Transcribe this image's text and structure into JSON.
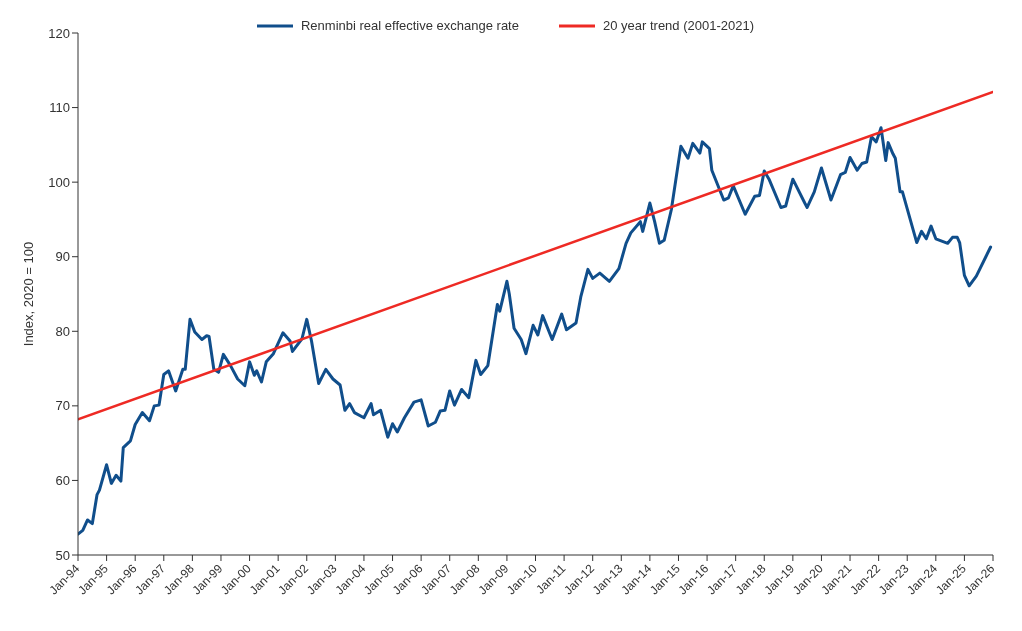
{
  "chart_data": {
    "type": "line",
    "ylabel": "Index, 2020 = 100",
    "legend": "top",
    "grid": false,
    "marker": "none",
    "line_style": "solid",
    "xlim": [
      "1994-01",
      "2026-01"
    ],
    "xticks": [
      {
        "value": "1994-01",
        "label": "Jan-94"
      },
      {
        "value": "1995-01",
        "label": "Jan-95"
      },
      {
        "value": "1996-01",
        "label": "Jan-96"
      },
      {
        "value": "1997-01",
        "label": "Jan-97"
      },
      {
        "value": "1998-01",
        "label": "Jan-98"
      },
      {
        "value": "1999-01",
        "label": "Jan-99"
      },
      {
        "value": "2000-01",
        "label": "Jan-00"
      },
      {
        "value": "2001-01",
        "label": "Jan-01"
      },
      {
        "value": "2002-01",
        "label": "Jan-02"
      },
      {
        "value": "2003-01",
        "label": "Jan-03"
      },
      {
        "value": "2004-01",
        "label": "Jan-04"
      },
      {
        "value": "2005-01",
        "label": "Jan-05"
      },
      {
        "value": "2006-01",
        "label": "Jan-06"
      },
      {
        "value": "2007-01",
        "label": "Jan-07"
      },
      {
        "value": "2008-01",
        "label": "Jan-08"
      },
      {
        "value": "2009-01",
        "label": "Jan-09"
      },
      {
        "value": "2010-01",
        "label": "Jan-10"
      },
      {
        "value": "2011-01",
        "label": "Jan-11"
      },
      {
        "value": "2012-01",
        "label": "Jan-12"
      },
      {
        "value": "2013-01",
        "label": "Jan-13"
      },
      {
        "value": "2014-01",
        "label": "Jan-14"
      },
      {
        "value": "2015-01",
        "label": "Jan-15"
      },
      {
        "value": "2016-01",
        "label": "Jan-16"
      },
      {
        "value": "2017-01",
        "label": "Jan-17"
      },
      {
        "value": "2018-01",
        "label": "Jan-18"
      },
      {
        "value": "2019-01",
        "label": "Jan-19"
      },
      {
        "value": "2020-01",
        "label": "Jan-20"
      },
      {
        "value": "2021-01",
        "label": "Jan-21"
      },
      {
        "value": "2022-01",
        "label": "Jan-22"
      },
      {
        "value": "2023-01",
        "label": "Jan-23"
      },
      {
        "value": "2024-01",
        "label": "Jan-24"
      },
      {
        "value": "2025-01",
        "label": "Jan-25"
      },
      {
        "value": "2026-01",
        "label": "Jan-26"
      }
    ],
    "ylim": [
      50,
      120
    ],
    "yticks": [
      50,
      60,
      70,
      80,
      90,
      100,
      110,
      120
    ],
    "series": [
      {
        "name": "Renminbi real effective exchange rate",
        "color": "#104e8b",
        "type": "line",
        "x": [
          "1994-01",
          "1994-03",
          "1994-05",
          "1994-07",
          "1994-09",
          "1994-10",
          "1995-01",
          "1995-03",
          "1995-05",
          "1995-07",
          "1995-08",
          "1995-11",
          "1996-01",
          "1996-04",
          "1996-07",
          "1996-09",
          "1996-11",
          "1997-01",
          "1997-03",
          "1997-06",
          "1997-09",
          "1997-10",
          "1997-12",
          "1998-02",
          "1998-05",
          "1998-07",
          "1998-08",
          "1998-10",
          "1998-12",
          "1999-02",
          "1999-05",
          "1999-08",
          "1999-11",
          "2000-01",
          "2000-03",
          "2000-04",
          "2000-06",
          "2000-08",
          "2000-11",
          "2001-03",
          "2001-06",
          "2001-07",
          "2001-11",
          "2002-01",
          "2002-03",
          "2002-06",
          "2002-09",
          "2002-12",
          "2003-03",
          "2003-05",
          "2003-07",
          "2003-09",
          "2004-01",
          "2004-04",
          "2004-05",
          "2004-08",
          "2004-11",
          "2005-01",
          "2005-03",
          "2005-06",
          "2005-10",
          "2006-01",
          "2006-04",
          "2006-07",
          "2006-09",
          "2006-11",
          "2007-01",
          "2007-03",
          "2007-06",
          "2007-09",
          "2007-12",
          "2008-02",
          "2008-05",
          "2008-09",
          "2008-10",
          "2009-01",
          "2009-02",
          "2009-04",
          "2009-07",
          "2009-09",
          "2009-12",
          "2010-02",
          "2010-04",
          "2010-08",
          "2010-12",
          "2011-02",
          "2011-06",
          "2011-08",
          "2011-11",
          "2012-01",
          "2012-04",
          "2012-08",
          "2012-12",
          "2013-03",
          "2013-05",
          "2013-09",
          "2013-10",
          "2014-01",
          "2014-03",
          "2014-05",
          "2014-07",
          "2014-10",
          "2015-02",
          "2015-05",
          "2015-07",
          "2015-10",
          "2015-11",
          "2016-02",
          "2016-03",
          "2016-08",
          "2016-10",
          "2016-12",
          "2017-05",
          "2017-09",
          "2017-11",
          "2018-01",
          "2018-03",
          "2018-08",
          "2018-10",
          "2019-01",
          "2019-06",
          "2019-07",
          "2019-10",
          "2020-01",
          "2020-05",
          "2020-09",
          "2020-11",
          "2021-01",
          "2021-04",
          "2021-06",
          "2021-08",
          "2021-10",
          "2021-12",
          "2022-02",
          "2022-04",
          "2022-05",
          "2022-07",
          "2022-08",
          "2022-10",
          "2022-11",
          "2023-05",
          "2023-07",
          "2023-09",
          "2023-11",
          "2024-01",
          "2024-06",
          "2024-08",
          "2024-10",
          "2024-11",
          "2025-01",
          "2025-03",
          "2025-06",
          "2025-10",
          "2025-12"
        ],
        "values": [
          52.8,
          53.3,
          54.7,
          54.2,
          58.1,
          58.7,
          62.1,
          59.6,
          60.7,
          59.9,
          64.4,
          65.3,
          67.5,
          69.1,
          68.0,
          70.0,
          70.1,
          74.2,
          74.7,
          72.0,
          74.9,
          74.9,
          81.6,
          79.9,
          78.9,
          79.4,
          79.3,
          74.9,
          74.5,
          76.9,
          75.4,
          73.6,
          72.7,
          75.9,
          74.1,
          74.7,
          73.2,
          75.9,
          77.0,
          79.8,
          78.7,
          77.3,
          79.0,
          81.6,
          78.7,
          73.0,
          74.9,
          73.6,
          72.8,
          69.4,
          70.3,
          69.1,
          68.4,
          70.3,
          68.8,
          69.4,
          65.8,
          67.6,
          66.5,
          68.4,
          70.5,
          70.8,
          67.3,
          67.8,
          69.3,
          69.4,
          72.0,
          70.1,
          72.2,
          71.1,
          76.1,
          74.2,
          75.4,
          83.6,
          82.7,
          86.7,
          85.0,
          80.4,
          78.9,
          77.0,
          80.8,
          79.5,
          82.1,
          78.9,
          82.3,
          80.2,
          81.1,
          84.6,
          88.3,
          87.1,
          87.8,
          86.7,
          88.4,
          91.8,
          93.2,
          94.7,
          93.4,
          97.2,
          94.7,
          91.8,
          92.2,
          96.3,
          104.8,
          103.2,
          105.2,
          103.9,
          105.4,
          104.5,
          101.6,
          97.6,
          97.9,
          99.5,
          95.7,
          98.1,
          98.2,
          101.5,
          100.4,
          96.6,
          96.8,
          100.4,
          97.2,
          96.6,
          98.7,
          101.9,
          97.6,
          101.0,
          101.3,
          103.3,
          101.6,
          102.5,
          102.7,
          106.1,
          105.4,
          107.3,
          102.9,
          105.3,
          103.8,
          103.2,
          98.7,
          98.7,
          91.9,
          93.4,
          92.4,
          94.1,
          92.4,
          91.8,
          92.6,
          92.6,
          91.9,
          87.5,
          86.1,
          87.4,
          90.0,
          91.3
        ]
      },
      {
        "name": "20 year trend (2001-2021)",
        "color": "#ee2a24",
        "type": "line",
        "x": [
          "1994-01",
          "2026-01"
        ],
        "values": [
          68.2,
          112.1
        ]
      }
    ]
  }
}
